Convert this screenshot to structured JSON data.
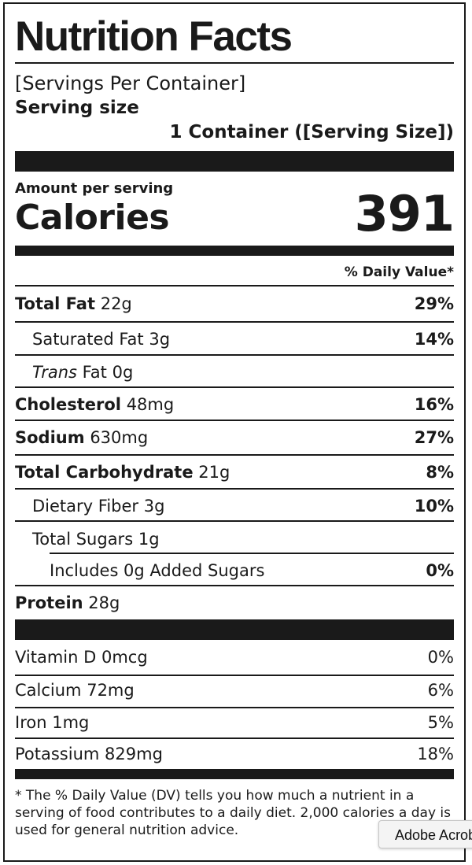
{
  "title": "Nutrition Facts",
  "servings_per_container": "[Servings Per Container]",
  "serving_size_label": "Serving size",
  "serving_size_value": "1 Container ([Serving Size])",
  "amount_per_serving": "Amount per serving",
  "calories_label": "Calories",
  "calories_value": "391",
  "daily_value_header": "% Daily Value*",
  "nutrients": [
    {
      "name": "Total Fat",
      "amount": "22g",
      "pct": "29%"
    },
    {
      "name": "Saturated Fat",
      "amount": "3g",
      "pct": "14%"
    },
    {
      "name": "Trans",
      "name_suffix": "Fat",
      "amount": "0g",
      "pct": ""
    },
    {
      "name": "Cholesterol",
      "amount": "48mg",
      "pct": "16%"
    },
    {
      "name": "Sodium",
      "amount": "630mg",
      "pct": "27%"
    },
    {
      "name": "Total Carbohydrate",
      "amount": "21g",
      "pct": "8%"
    },
    {
      "name": "Dietary Fiber",
      "amount": "3g",
      "pct": "10%"
    },
    {
      "name": "Total Sugars",
      "amount": "1g",
      "pct": ""
    },
    {
      "name": "Includes 0g Added Sugars",
      "amount": "",
      "pct": "0%"
    },
    {
      "name": "Protein",
      "amount": "28g",
      "pct": ""
    }
  ],
  "vitamins": [
    {
      "name": "Vitamin D",
      "amount": "0mcg",
      "pct": "0%"
    },
    {
      "name": "Calcium",
      "amount": "72mg",
      "pct": "6%"
    },
    {
      "name": "Iron",
      "amount": "1mg",
      "pct": "5%"
    },
    {
      "name": "Potassium",
      "amount": "829mg",
      "pct": "18%"
    }
  ],
  "footnote": "* The % Daily Value (DV) tells you how much a nutrient in a serving of food contributes to a daily diet. 2,000 calories a day is used for general nutrition advice.",
  "tooltip": "Adobe Acrobat"
}
